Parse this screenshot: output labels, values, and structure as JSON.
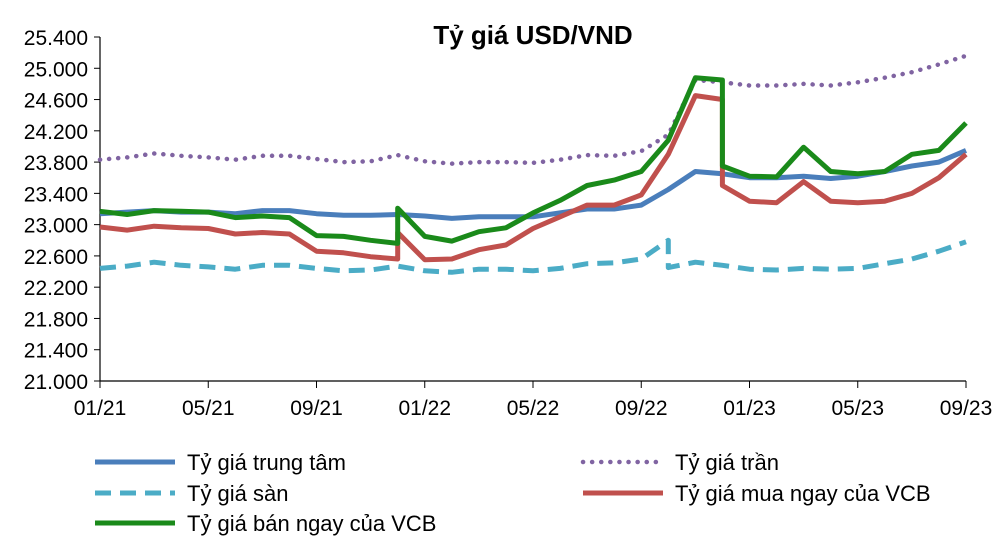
{
  "chart_data": {
    "type": "line",
    "title": "Tỷ giá USD/VND",
    "xlabel": "",
    "ylabel": "",
    "x_ticks": [
      "01/21",
      "05/21",
      "09/21",
      "01/22",
      "05/22",
      "09/22",
      "01/23",
      "05/23",
      "09/23"
    ],
    "xlim": [
      "01/21",
      "09/23"
    ],
    "y_ticks": [
      "21.000",
      "21.400",
      "21.800",
      "22.200",
      "22.600",
      "23.000",
      "23.400",
      "23.800",
      "24.200",
      "24.600",
      "25.000",
      "25.400"
    ],
    "ylim": [
      21000,
      25400
    ],
    "grid": false,
    "legend_position": "bottom",
    "series": [
      {
        "name": "Tỷ giá trung tâm",
        "color": "#4a7ebb",
        "style": "solid",
        "points": [
          [
            "01/21",
            23140
          ],
          [
            "02/21",
            23160
          ],
          [
            "03/21",
            23180
          ],
          [
            "04/21",
            23160
          ],
          [
            "05/21",
            23160
          ],
          [
            "06/21",
            23140
          ],
          [
            "07/21",
            23180
          ],
          [
            "08/21",
            23180
          ],
          [
            "09/21",
            23140
          ],
          [
            "10/21",
            23120
          ],
          [
            "11/21",
            23120
          ],
          [
            "12/21",
            23130
          ],
          [
            "01/22",
            23110
          ],
          [
            "02/22",
            23080
          ],
          [
            "03/22",
            23100
          ],
          [
            "04/22",
            23100
          ],
          [
            "05/22",
            23100
          ],
          [
            "06/22",
            23150
          ],
          [
            "07/22",
            23200
          ],
          [
            "08/22",
            23200
          ],
          [
            "09/22",
            23250
          ],
          [
            "10/22",
            23450
          ],
          [
            "11/22",
            23680
          ],
          [
            "12/22",
            23650
          ],
          [
            "01/23",
            23600
          ],
          [
            "02/23",
            23600
          ],
          [
            "03/23",
            23620
          ],
          [
            "04/23",
            23590
          ],
          [
            "05/23",
            23620
          ],
          [
            "06/23",
            23680
          ],
          [
            "07/23",
            23750
          ],
          [
            "08/23",
            23800
          ],
          [
            "09/23",
            23950
          ]
        ]
      },
      {
        "name": "Tỷ giá trần",
        "color": "#8064a2",
        "style": "dotted",
        "points": [
          [
            "01/21",
            23830
          ],
          [
            "02/21",
            23860
          ],
          [
            "03/21",
            23910
          ],
          [
            "04/21",
            23880
          ],
          [
            "05/21",
            23860
          ],
          [
            "06/21",
            23830
          ],
          [
            "07/21",
            23880
          ],
          [
            "08/21",
            23880
          ],
          [
            "09/21",
            23840
          ],
          [
            "10/21",
            23800
          ],
          [
            "11/21",
            23810
          ],
          [
            "12/21",
            23890
          ],
          [
            "01/22",
            23810
          ],
          [
            "02/22",
            23780
          ],
          [
            "03/22",
            23800
          ],
          [
            "04/22",
            23800
          ],
          [
            "05/22",
            23790
          ],
          [
            "06/22",
            23830
          ],
          [
            "07/22",
            23890
          ],
          [
            "08/22",
            23880
          ],
          [
            "09/22",
            23940
          ],
          [
            "10/22",
            24150
          ],
          [
            "11/22",
            24850
          ],
          [
            "12/22",
            24820
          ],
          [
            "01/23",
            24780
          ],
          [
            "02/23",
            24780
          ],
          [
            "03/23",
            24800
          ],
          [
            "04/23",
            24780
          ],
          [
            "05/23",
            24820
          ],
          [
            "06/23",
            24880
          ],
          [
            "07/23",
            24950
          ],
          [
            "08/23",
            25050
          ],
          [
            "09/23",
            25160
          ]
        ]
      },
      {
        "name": "Tỷ giá sàn",
        "color": "#4bacc6",
        "style": "dashed",
        "points": [
          [
            "01/21",
            22440
          ],
          [
            "02/21",
            22470
          ],
          [
            "03/21",
            22520
          ],
          [
            "04/21",
            22480
          ],
          [
            "05/21",
            22460
          ],
          [
            "06/21",
            22430
          ],
          [
            "07/21",
            22480
          ],
          [
            "08/21",
            22480
          ],
          [
            "09/21",
            22440
          ],
          [
            "10/21",
            22410
          ],
          [
            "11/21",
            22420
          ],
          [
            "12/21",
            22470
          ],
          [
            "01/22",
            22410
          ],
          [
            "02/22",
            22390
          ],
          [
            "03/22",
            22430
          ],
          [
            "04/22",
            22430
          ],
          [
            "05/22",
            22410
          ],
          [
            "06/22",
            22440
          ],
          [
            "07/22",
            22500
          ],
          [
            "08/22",
            22510
          ],
          [
            "09/22",
            22560
          ],
          [
            "10/22",
            22800
          ],
          [
            "10/22",
            22450
          ],
          [
            "11/22",
            22520
          ],
          [
            "12/22",
            22480
          ],
          [
            "01/23",
            22430
          ],
          [
            "02/23",
            22420
          ],
          [
            "03/23",
            22440
          ],
          [
            "04/23",
            22430
          ],
          [
            "05/23",
            22440
          ],
          [
            "06/23",
            22500
          ],
          [
            "07/23",
            22560
          ],
          [
            "08/23",
            22660
          ],
          [
            "09/23",
            22780
          ]
        ]
      },
      {
        "name": "Tỷ giá mua ngay của VCB",
        "color": "#c0504d",
        "style": "solid",
        "points": [
          [
            "01/21",
            22970
          ],
          [
            "02/21",
            22930
          ],
          [
            "03/21",
            22980
          ],
          [
            "04/21",
            22960
          ],
          [
            "05/21",
            22950
          ],
          [
            "06/21",
            22880
          ],
          [
            "07/21",
            22900
          ],
          [
            "08/21",
            22880
          ],
          [
            "09/21",
            22660
          ],
          [
            "10/21",
            22640
          ],
          [
            "11/21",
            22590
          ],
          [
            "12/21",
            22560
          ],
          [
            "12/21",
            22900
          ],
          [
            "01/22",
            22550
          ],
          [
            "02/22",
            22560
          ],
          [
            "03/22",
            22680
          ],
          [
            "04/22",
            22740
          ],
          [
            "05/22",
            22950
          ],
          [
            "06/22",
            23100
          ],
          [
            "07/22",
            23250
          ],
          [
            "08/22",
            23250
          ],
          [
            "09/22",
            23380
          ],
          [
            "10/22",
            23900
          ],
          [
            "11/22",
            24650
          ],
          [
            "12/22",
            24600
          ],
          [
            "12/22",
            23500
          ],
          [
            "01/23",
            23300
          ],
          [
            "02/23",
            23280
          ],
          [
            "03/23",
            23550
          ],
          [
            "04/23",
            23300
          ],
          [
            "05/23",
            23280
          ],
          [
            "06/23",
            23300
          ],
          [
            "07/23",
            23400
          ],
          [
            "08/23",
            23600
          ],
          [
            "09/23",
            23900
          ]
        ]
      },
      {
        "name": "Tỷ giá bán ngay của VCB",
        "color": "#1a8a1a",
        "style": "solid",
        "points": [
          [
            "01/21",
            23170
          ],
          [
            "02/21",
            23130
          ],
          [
            "03/21",
            23180
          ],
          [
            "04/21",
            23170
          ],
          [
            "05/21",
            23160
          ],
          [
            "06/21",
            23090
          ],
          [
            "07/21",
            23110
          ],
          [
            "08/21",
            23090
          ],
          [
            "09/21",
            22860
          ],
          [
            "10/21",
            22850
          ],
          [
            "11/21",
            22800
          ],
          [
            "12/21",
            22760
          ],
          [
            "12/21",
            23210
          ],
          [
            "01/22",
            22850
          ],
          [
            "02/22",
            22790
          ],
          [
            "03/22",
            22910
          ],
          [
            "04/22",
            22960
          ],
          [
            "05/22",
            23150
          ],
          [
            "06/22",
            23310
          ],
          [
            "07/22",
            23500
          ],
          [
            "08/22",
            23570
          ],
          [
            "09/22",
            23680
          ],
          [
            "10/22",
            24080
          ],
          [
            "11/22",
            24880
          ],
          [
            "12/22",
            24850
          ],
          [
            "12/22",
            23750
          ],
          [
            "01/23",
            23620
          ],
          [
            "02/23",
            23610
          ],
          [
            "03/23",
            23990
          ],
          [
            "04/23",
            23680
          ],
          [
            "05/23",
            23650
          ],
          [
            "06/23",
            23680
          ],
          [
            "07/23",
            23900
          ],
          [
            "08/23",
            23950
          ],
          [
            "09/23",
            24300
          ]
        ]
      }
    ]
  }
}
